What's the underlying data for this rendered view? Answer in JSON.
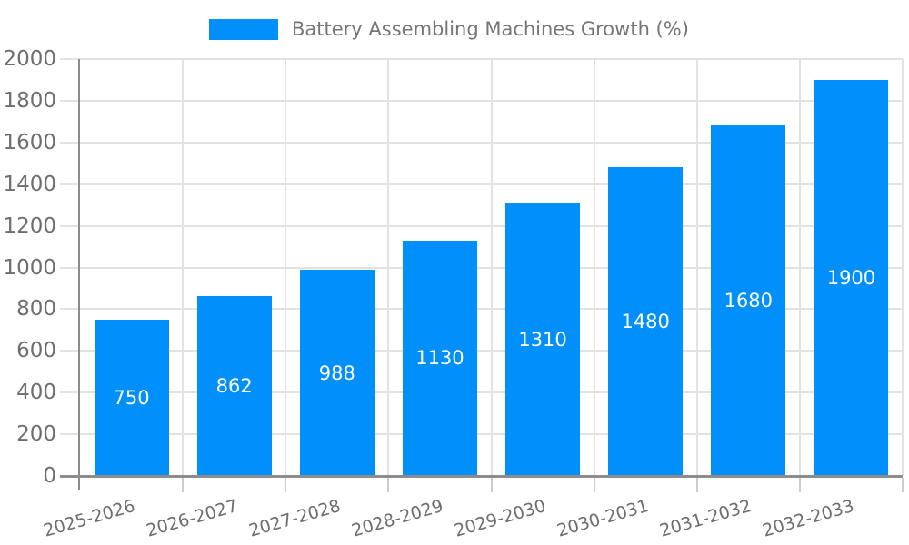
{
  "legend": {
    "swatch_color": "#008FFB"
  },
  "chart_data": {
    "type": "bar",
    "title": "Battery Assembling Machines Growth (%)",
    "categories": [
      "2025-2026",
      "2026-2027",
      "2027-2028",
      "2028-2029",
      "2029-2030",
      "2030-2031",
      "2031-2032",
      "2032-2033"
    ],
    "series": [
      {
        "name": "Battery Assembling Machines Growth (%)",
        "values": [
          750,
          862,
          988,
          1130,
          1310,
          1480,
          1680,
          1900
        ]
      }
    ],
    "xlabel": "",
    "ylabel": "",
    "ylim": [
      0,
      2000
    ],
    "ytick_step": 200,
    "ytick_labels": [
      "0",
      "200",
      "400",
      "600",
      "800",
      "1000",
      "1200",
      "1400",
      "1600",
      "1800",
      "2000"
    ],
    "grid": true,
    "legend_position": "top",
    "colors": {
      "bar": "#008FFB",
      "value_label": "#ffffff",
      "axis_line": "#8c8c8c",
      "gridline": "#e2e2e2",
      "tick": "#cccccc",
      "axis_text": "#6e6e6e",
      "legend_text": "#757575"
    }
  }
}
